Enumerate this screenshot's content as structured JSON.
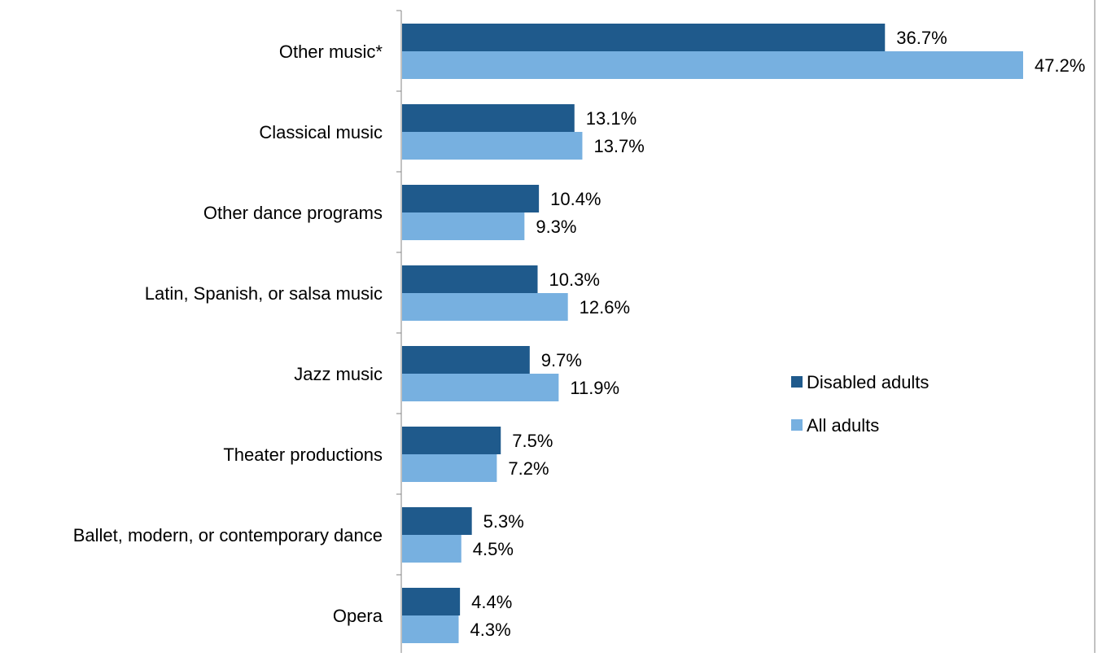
{
  "chart_data": {
    "type": "bar",
    "orientation": "horizontal",
    "categories": [
      "Other music*",
      "Classical music",
      "Other dance programs",
      "Latin, Spanish, or salsa music",
      "Jazz music",
      "Theater productions",
      "Ballet, modern, or contemporary dance",
      "Opera"
    ],
    "series": [
      {
        "name": "Disabled adults",
        "values": [
          36.7,
          13.1,
          10.4,
          10.3,
          9.7,
          7.5,
          5.3,
          4.4
        ],
        "labels": [
          "36.7%",
          "13.1%",
          "10.4%",
          "10.3%",
          "9.7%",
          "7.5%",
          "5.3%",
          "4.4%"
        ],
        "color": "#1f5a8c"
      },
      {
        "name": "All adults",
        "values": [
          47.2,
          13.7,
          9.3,
          12.6,
          11.9,
          7.2,
          4.5,
          4.3
        ],
        "labels": [
          "47.2%",
          "13.7%",
          "9.3%",
          "12.6%",
          "11.9%",
          "7.2%",
          "4.5%",
          "4.3%"
        ],
        "color": "#77b0e0"
      }
    ],
    "xlim": [
      0,
      50
    ],
    "legend_position": "right",
    "grid": false,
    "title": "",
    "xlabel": "",
    "ylabel": ""
  }
}
